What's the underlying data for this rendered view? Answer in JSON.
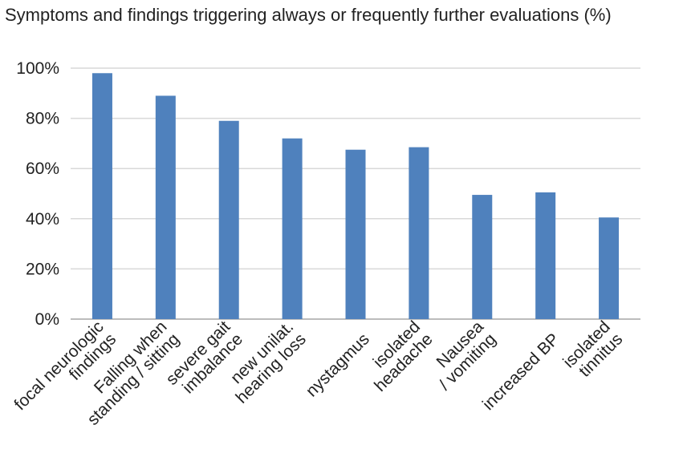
{
  "chart_data": {
    "type": "bar",
    "title": "Symptoms and findings triggering always or frequently further evaluations (%)",
    "categories": [
      [
        "focal neurologic",
        "findings"
      ],
      [
        "Falling when",
        "standing / sitting"
      ],
      [
        "severe gait",
        "imbalance"
      ],
      [
        "new unilat.",
        "hearing loss"
      ],
      [
        "nystagmus"
      ],
      [
        "isolated",
        "headache"
      ],
      [
        "Nausea",
        "/ vomiting"
      ],
      [
        "increased BP"
      ],
      [
        "isolated",
        "tinnitus"
      ]
    ],
    "values": [
      98,
      89,
      79,
      72,
      67.5,
      68.5,
      49.5,
      50.5,
      40.5
    ],
    "yticks": [
      "0%",
      "20%",
      "40%",
      "60%",
      "80%",
      "100%"
    ],
    "ylim": [
      0,
      100
    ],
    "grid": true,
    "xlabel": "",
    "ylabel": "",
    "bar_color": "#4f81bd",
    "grid_color": "#d9d9d9",
    "axis_color": "#a6a6a6"
  }
}
